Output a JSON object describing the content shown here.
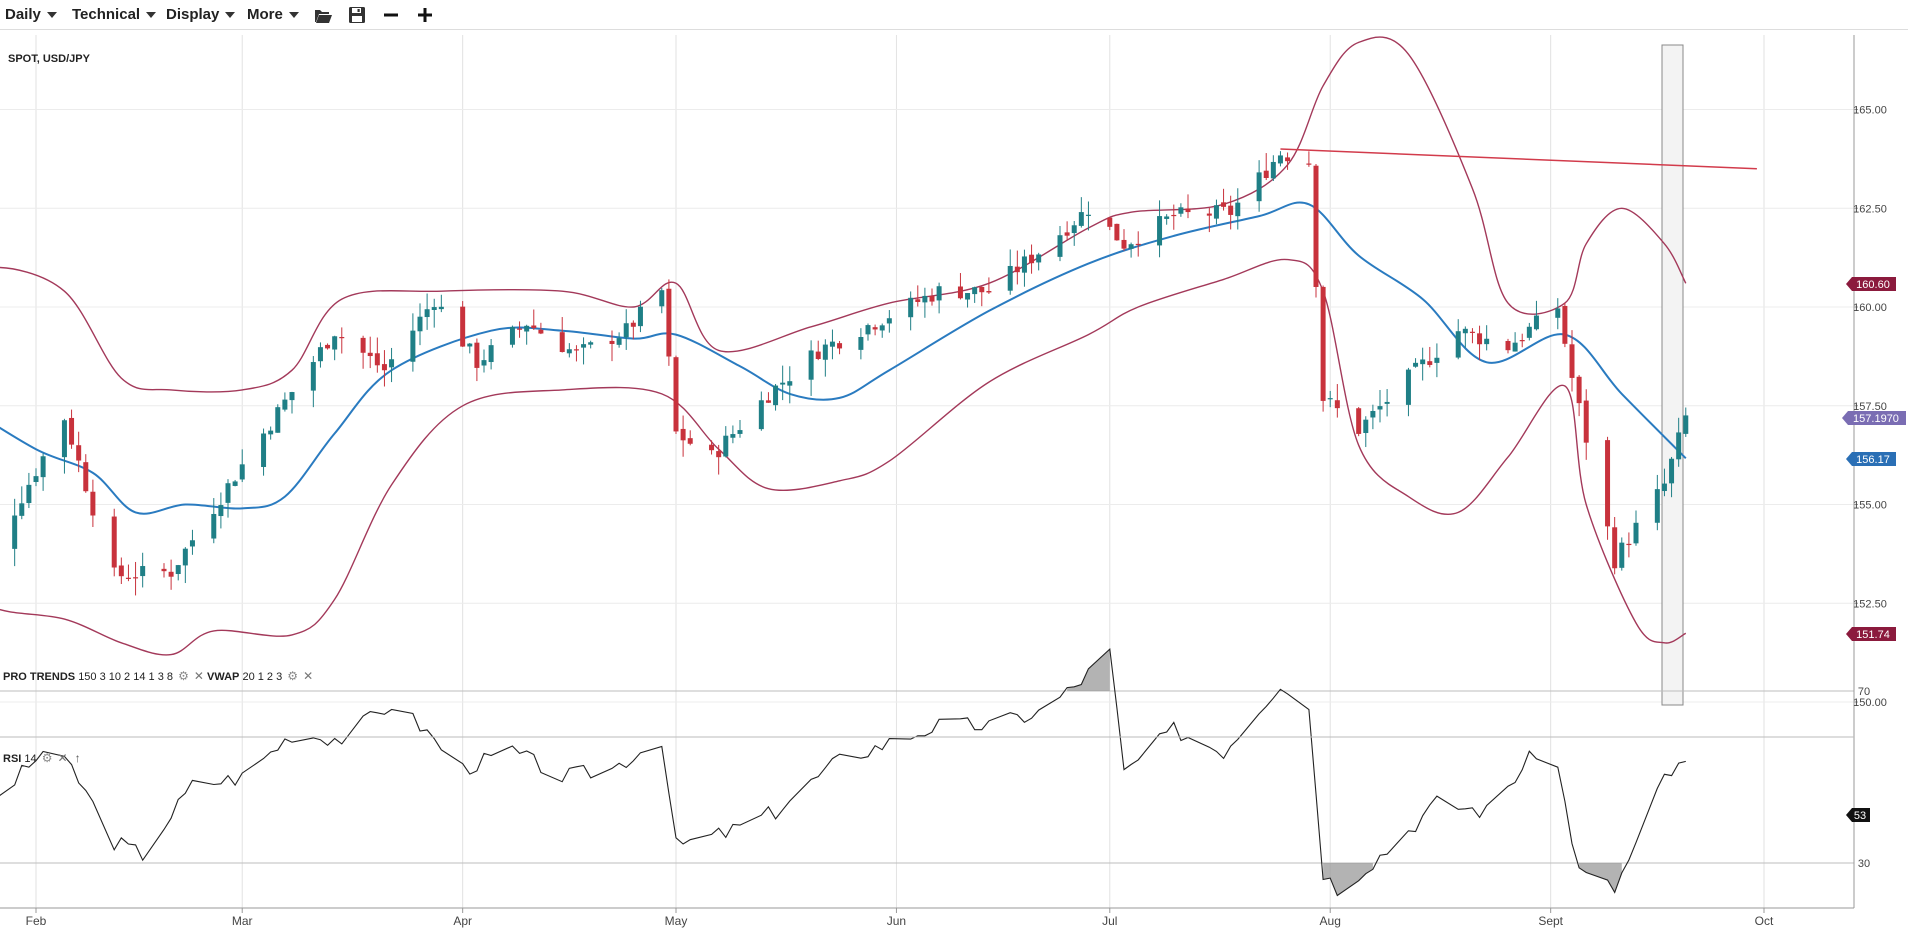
{
  "toolbar": {
    "menus": [
      {
        "label": "Daily"
      },
      {
        "label": "Technical"
      },
      {
        "label": "Display"
      },
      {
        "label": "More"
      }
    ],
    "icons": [
      "folder-open-icon",
      "save-icon",
      "zoom-out-icon",
      "zoom-in-icon"
    ]
  },
  "instrument": "SPOT, USD/JPY",
  "indicators": {
    "pro_trends": {
      "name": "PRO TRENDS",
      "params": "150 3 10 2 14 1 3 8"
    },
    "vwap": {
      "name": "VWAP",
      "params": "20 1 2 3"
    },
    "rsi": {
      "name": "RSI",
      "params": "14"
    }
  },
  "badges": {
    "upper_band": "160.60",
    "last_price": "157.1970",
    "mid_band": "156.17",
    "lower_band": "151.74",
    "rsi_value": "53"
  },
  "colors": {
    "up_candle": "#1f7f86",
    "down_candle": "#c8323c",
    "band": "#a3395a",
    "middle": "#2a7bc0",
    "trendline": "#d23b4b",
    "rsi_line": "#222222",
    "badge_band": "#8b1a3d",
    "badge_last": "#7a6db3",
    "badge_mid": "#2a6fb5",
    "badge_rsi": "#111111"
  },
  "chart_data": [
    {
      "type": "candlestick",
      "title": "SPOT, USD/JPY",
      "x_tick_labels": [
        "Feb",
        "Mar",
        "Apr",
        "May",
        "Jun",
        "Jul",
        "Aug",
        "Sept",
        "Oct"
      ],
      "y_tick_labels": [
        "150.00",
        "152.50",
        "155.00",
        "157.50",
        "160.00",
        "162.50",
        "165.00"
      ],
      "ylim": [
        149.5,
        166.8
      ],
      "grid": true,
      "ohlc_anchors": [
        {
          "date": "2024-01-24",
          "close": 153.2
        },
        {
          "date": "2024-02-05",
          "close": 157.2
        },
        {
          "date": "2024-02-08",
          "close": 155.5
        },
        {
          "date": "2024-02-12",
          "close": 153.2
        },
        {
          "date": "2024-02-20",
          "close": 153.3
        },
        {
          "date": "2024-02-27",
          "close": 155.2
        },
        {
          "date": "2024-03-07",
          "close": 157.6
        },
        {
          "date": "2024-03-14",
          "close": 159.4
        },
        {
          "date": "2024-03-21",
          "close": 158.4
        },
        {
          "date": "2024-03-28",
          "close": 160.2
        },
        {
          "date": "2024-04-03",
          "close": 158.6
        },
        {
          "date": "2024-04-10",
          "close": 159.6
        },
        {
          "date": "2024-04-17",
          "close": 158.8
        },
        {
          "date": "2024-04-24",
          "close": 159.4
        },
        {
          "date": "2024-04-29",
          "close": 160.4
        },
        {
          "date": "2024-05-01",
          "close": 156.8
        },
        {
          "date": "2024-05-06",
          "close": 156.2
        },
        {
          "date": "2024-05-14",
          "close": 157.8
        },
        {
          "date": "2024-05-21",
          "close": 158.9
        },
        {
          "date": "2024-05-31",
          "close": 159.8
        },
        {
          "date": "2024-06-07",
          "close": 160.4
        },
        {
          "date": "2024-06-14",
          "close": 160.4
        },
        {
          "date": "2024-06-21",
          "close": 161.4
        },
        {
          "date": "2024-06-28",
          "close": 162.5
        },
        {
          "date": "2024-07-03",
          "close": 161.6
        },
        {
          "date": "2024-07-10",
          "close": 162.3
        },
        {
          "date": "2024-07-18",
          "close": 162.4
        },
        {
          "date": "2024-07-25",
          "close": 163.9
        },
        {
          "date": "2024-07-29",
          "close": 163.7
        },
        {
          "date": "2024-07-31",
          "close": 157.7
        },
        {
          "date": "2024-08-05",
          "close": 156.9
        },
        {
          "date": "2024-08-12",
          "close": 158.2
        },
        {
          "date": "2024-08-19",
          "close": 159.4
        },
        {
          "date": "2024-08-26",
          "close": 159.0
        },
        {
          "date": "2024-09-02",
          "close": 160.0
        },
        {
          "date": "2024-09-04",
          "close": 158.2
        },
        {
          "date": "2024-09-10",
          "close": 153.6
        },
        {
          "date": "2024-09-17",
          "close": 155.5
        },
        {
          "date": "2024-09-20",
          "close": 157.2
        }
      ],
      "series": [
        {
          "name": "Upper band",
          "points": [
            {
              "date": "2024-01-22",
              "value": 160.3
            },
            {
              "date": "2024-01-26",
              "value": 161.0
            },
            {
              "date": "2024-02-05",
              "value": 160.4
            },
            {
              "date": "2024-02-13",
              "value": 158.2
            },
            {
              "date": "2024-02-20",
              "value": 157.9
            },
            {
              "date": "2024-03-01",
              "value": 157.9
            },
            {
              "date": "2024-03-08",
              "value": 158.4
            },
            {
              "date": "2024-03-15",
              "value": 160.2
            },
            {
              "date": "2024-03-29",
              "value": 160.4
            },
            {
              "date": "2024-04-15",
              "value": 160.4
            },
            {
              "date": "2024-04-25",
              "value": 160.0
            },
            {
              "date": "2024-05-01",
              "value": 160.6
            },
            {
              "date": "2024-05-07",
              "value": 158.9
            },
            {
              "date": "2024-05-20",
              "value": 159.5
            },
            {
              "date": "2024-05-31",
              "value": 160.1
            },
            {
              "date": "2024-06-14",
              "value": 160.6
            },
            {
              "date": "2024-06-28",
              "value": 162.0
            },
            {
              "date": "2024-07-04",
              "value": 162.4
            },
            {
              "date": "2024-07-17",
              "value": 162.6
            },
            {
              "date": "2024-07-26",
              "value": 163.6
            },
            {
              "date": "2024-07-31",
              "value": 165.6
            },
            {
              "date": "2024-08-05",
              "value": 166.7
            },
            {
              "date": "2024-08-12",
              "value": 166.4
            },
            {
              "date": "2024-08-21",
              "value": 163.0
            },
            {
              "date": "2024-08-26",
              "value": 160.1
            },
            {
              "date": "2024-09-03",
              "value": 160.1
            },
            {
              "date": "2024-09-06",
              "value": 161.6
            },
            {
              "date": "2024-09-11",
              "value": 162.5
            },
            {
              "date": "2024-09-17",
              "value": 161.6
            },
            {
              "date": "2024-09-20",
              "value": 160.6
            }
          ]
        },
        {
          "name": "Middle band",
          "points": [
            {
              "date": "2024-01-22",
              "value": 157.5
            },
            {
              "date": "2024-02-01",
              "value": 156.4
            },
            {
              "date": "2024-02-09",
              "value": 155.8
            },
            {
              "date": "2024-02-15",
              "value": 154.8
            },
            {
              "date": "2024-02-22",
              "value": 155.0
            },
            {
              "date": "2024-03-01",
              "value": 154.9
            },
            {
              "date": "2024-03-07",
              "value": 155.2
            },
            {
              "date": "2024-03-14",
              "value": 156.8
            },
            {
              "date": "2024-03-22",
              "value": 158.4
            },
            {
              "date": "2024-04-05",
              "value": 159.4
            },
            {
              "date": "2024-04-15",
              "value": 159.4
            },
            {
              "date": "2024-04-25",
              "value": 159.2
            },
            {
              "date": "2024-05-01",
              "value": 159.3
            },
            {
              "date": "2024-05-10",
              "value": 158.5
            },
            {
              "date": "2024-05-17",
              "value": 157.8
            },
            {
              "date": "2024-05-24",
              "value": 157.7
            },
            {
              "date": "2024-05-31",
              "value": 158.4
            },
            {
              "date": "2024-06-14",
              "value": 159.9
            },
            {
              "date": "2024-06-28",
              "value": 161.1
            },
            {
              "date": "2024-07-10",
              "value": 161.8
            },
            {
              "date": "2024-07-22",
              "value": 162.3
            },
            {
              "date": "2024-07-29",
              "value": 162.6
            },
            {
              "date": "2024-08-05",
              "value": 161.3
            },
            {
              "date": "2024-08-14",
              "value": 160.2
            },
            {
              "date": "2024-08-23",
              "value": 158.6
            },
            {
              "date": "2024-09-03",
              "value": 159.3
            },
            {
              "date": "2024-09-11",
              "value": 157.8
            },
            {
              "date": "2024-09-20",
              "value": 156.17
            }
          ]
        },
        {
          "name": "Lower band",
          "points": [
            {
              "date": "2024-01-22",
              "value": 153.3
            },
            {
              "date": "2024-01-26",
              "value": 152.4
            },
            {
              "date": "2024-02-05",
              "value": 152.1
            },
            {
              "date": "2024-02-13",
              "value": 151.5
            },
            {
              "date": "2024-02-20",
              "value": 151.2
            },
            {
              "date": "2024-02-26",
              "value": 151.8
            },
            {
              "date": "2024-03-08",
              "value": 151.7
            },
            {
              "date": "2024-03-14",
              "value": 152.6
            },
            {
              "date": "2024-03-22",
              "value": 155.5
            },
            {
              "date": "2024-04-01",
              "value": 157.5
            },
            {
              "date": "2024-04-15",
              "value": 157.9
            },
            {
              "date": "2024-04-29",
              "value": 157.8
            },
            {
              "date": "2024-05-07",
              "value": 156.4
            },
            {
              "date": "2024-05-14",
              "value": 155.4
            },
            {
              "date": "2024-05-24",
              "value": 155.6
            },
            {
              "date": "2024-05-31",
              "value": 156.1
            },
            {
              "date": "2024-06-14",
              "value": 158.1
            },
            {
              "date": "2024-06-28",
              "value": 159.3
            },
            {
              "date": "2024-07-05",
              "value": 160.0
            },
            {
              "date": "2024-07-17",
              "value": 160.7
            },
            {
              "date": "2024-07-26",
              "value": 161.2
            },
            {
              "date": "2024-07-31",
              "value": 160.4
            },
            {
              "date": "2024-08-05",
              "value": 156.5
            },
            {
              "date": "2024-08-12",
              "value": 155.2
            },
            {
              "date": "2024-08-19",
              "value": 154.8
            },
            {
              "date": "2024-08-26",
              "value": 156.2
            },
            {
              "date": "2024-09-03",
              "value": 158.0
            },
            {
              "date": "2024-09-06",
              "value": 155.0
            },
            {
              "date": "2024-09-13",
              "value": 152.0
            },
            {
              "date": "2024-09-17",
              "value": 151.5
            },
            {
              "date": "2024-09-20",
              "value": 151.74
            }
          ]
        },
        {
          "name": "Trendline",
          "points": [
            {
              "date": "2024-07-25",
              "value": 164.0
            },
            {
              "date": "2024-09-30",
              "value": 163.5
            }
          ]
        }
      ],
      "highlight_range": {
        "from": "2024-09-18",
        "to": "2024-09-20",
        "ylim": [
          150.0,
          166.7
        ]
      }
    },
    {
      "type": "line",
      "title": "RSI 14",
      "y_tick_labels": [
        "30",
        "70"
      ],
      "ylim": [
        10,
        90
      ],
      "thresholds": [
        30,
        70
      ],
      "series": [
        {
          "name": "RSI",
          "points": [
            {
              "date": "2024-01-22",
              "value": 31
            },
            {
              "date": "2024-01-24",
              "value": 28
            },
            {
              "date": "2024-01-26",
              "value": 44
            },
            {
              "date": "2024-02-02",
              "value": 56
            },
            {
              "date": "2024-02-06",
              "value": 52
            },
            {
              "date": "2024-02-12",
              "value": 35
            },
            {
              "date": "2024-02-16",
              "value": 32
            },
            {
              "date": "2024-02-23",
              "value": 48
            },
            {
              "date": "2024-03-01",
              "value": 50
            },
            {
              "date": "2024-03-08",
              "value": 60
            },
            {
              "date": "2024-03-15",
              "value": 59
            },
            {
              "date": "2024-03-22",
              "value": 67
            },
            {
              "date": "2024-03-26",
              "value": 62
            },
            {
              "date": "2024-04-01",
              "value": 52
            },
            {
              "date": "2024-04-08",
              "value": 56
            },
            {
              "date": "2024-04-15",
              "value": 50
            },
            {
              "date": "2024-04-22",
              "value": 52
            },
            {
              "date": "2024-04-29",
              "value": 59
            },
            {
              "date": "2024-05-01",
              "value": 34
            },
            {
              "date": "2024-05-08",
              "value": 37
            },
            {
              "date": "2024-05-15",
              "value": 42
            },
            {
              "date": "2024-05-24",
              "value": 54
            },
            {
              "date": "2024-05-31",
              "value": 58
            },
            {
              "date": "2024-06-07",
              "value": 62
            },
            {
              "date": "2024-06-14",
              "value": 62
            },
            {
              "date": "2024-06-21",
              "value": 65
            },
            {
              "date": "2024-06-26",
              "value": 71
            },
            {
              "date": "2024-07-01",
              "value": 79
            },
            {
              "date": "2024-07-03",
              "value": 51
            },
            {
              "date": "2024-07-10",
              "value": 61
            },
            {
              "date": "2024-07-17",
              "value": 56
            },
            {
              "date": "2024-07-25",
              "value": 72
            },
            {
              "date": "2024-07-29",
              "value": 66
            },
            {
              "date": "2024-07-31",
              "value": 28
            },
            {
              "date": "2024-08-02",
              "value": 24
            },
            {
              "date": "2024-08-09",
              "value": 33
            },
            {
              "date": "2024-08-16",
              "value": 44
            },
            {
              "date": "2024-08-23",
              "value": 42
            },
            {
              "date": "2024-08-30",
              "value": 56
            },
            {
              "date": "2024-09-02",
              "value": 52
            },
            {
              "date": "2024-09-05",
              "value": 28
            },
            {
              "date": "2024-09-10",
              "value": 24
            },
            {
              "date": "2024-09-13",
              "value": 34
            },
            {
              "date": "2024-09-17",
              "value": 50
            },
            {
              "date": "2024-09-20",
              "value": 53
            }
          ]
        }
      ]
    }
  ]
}
